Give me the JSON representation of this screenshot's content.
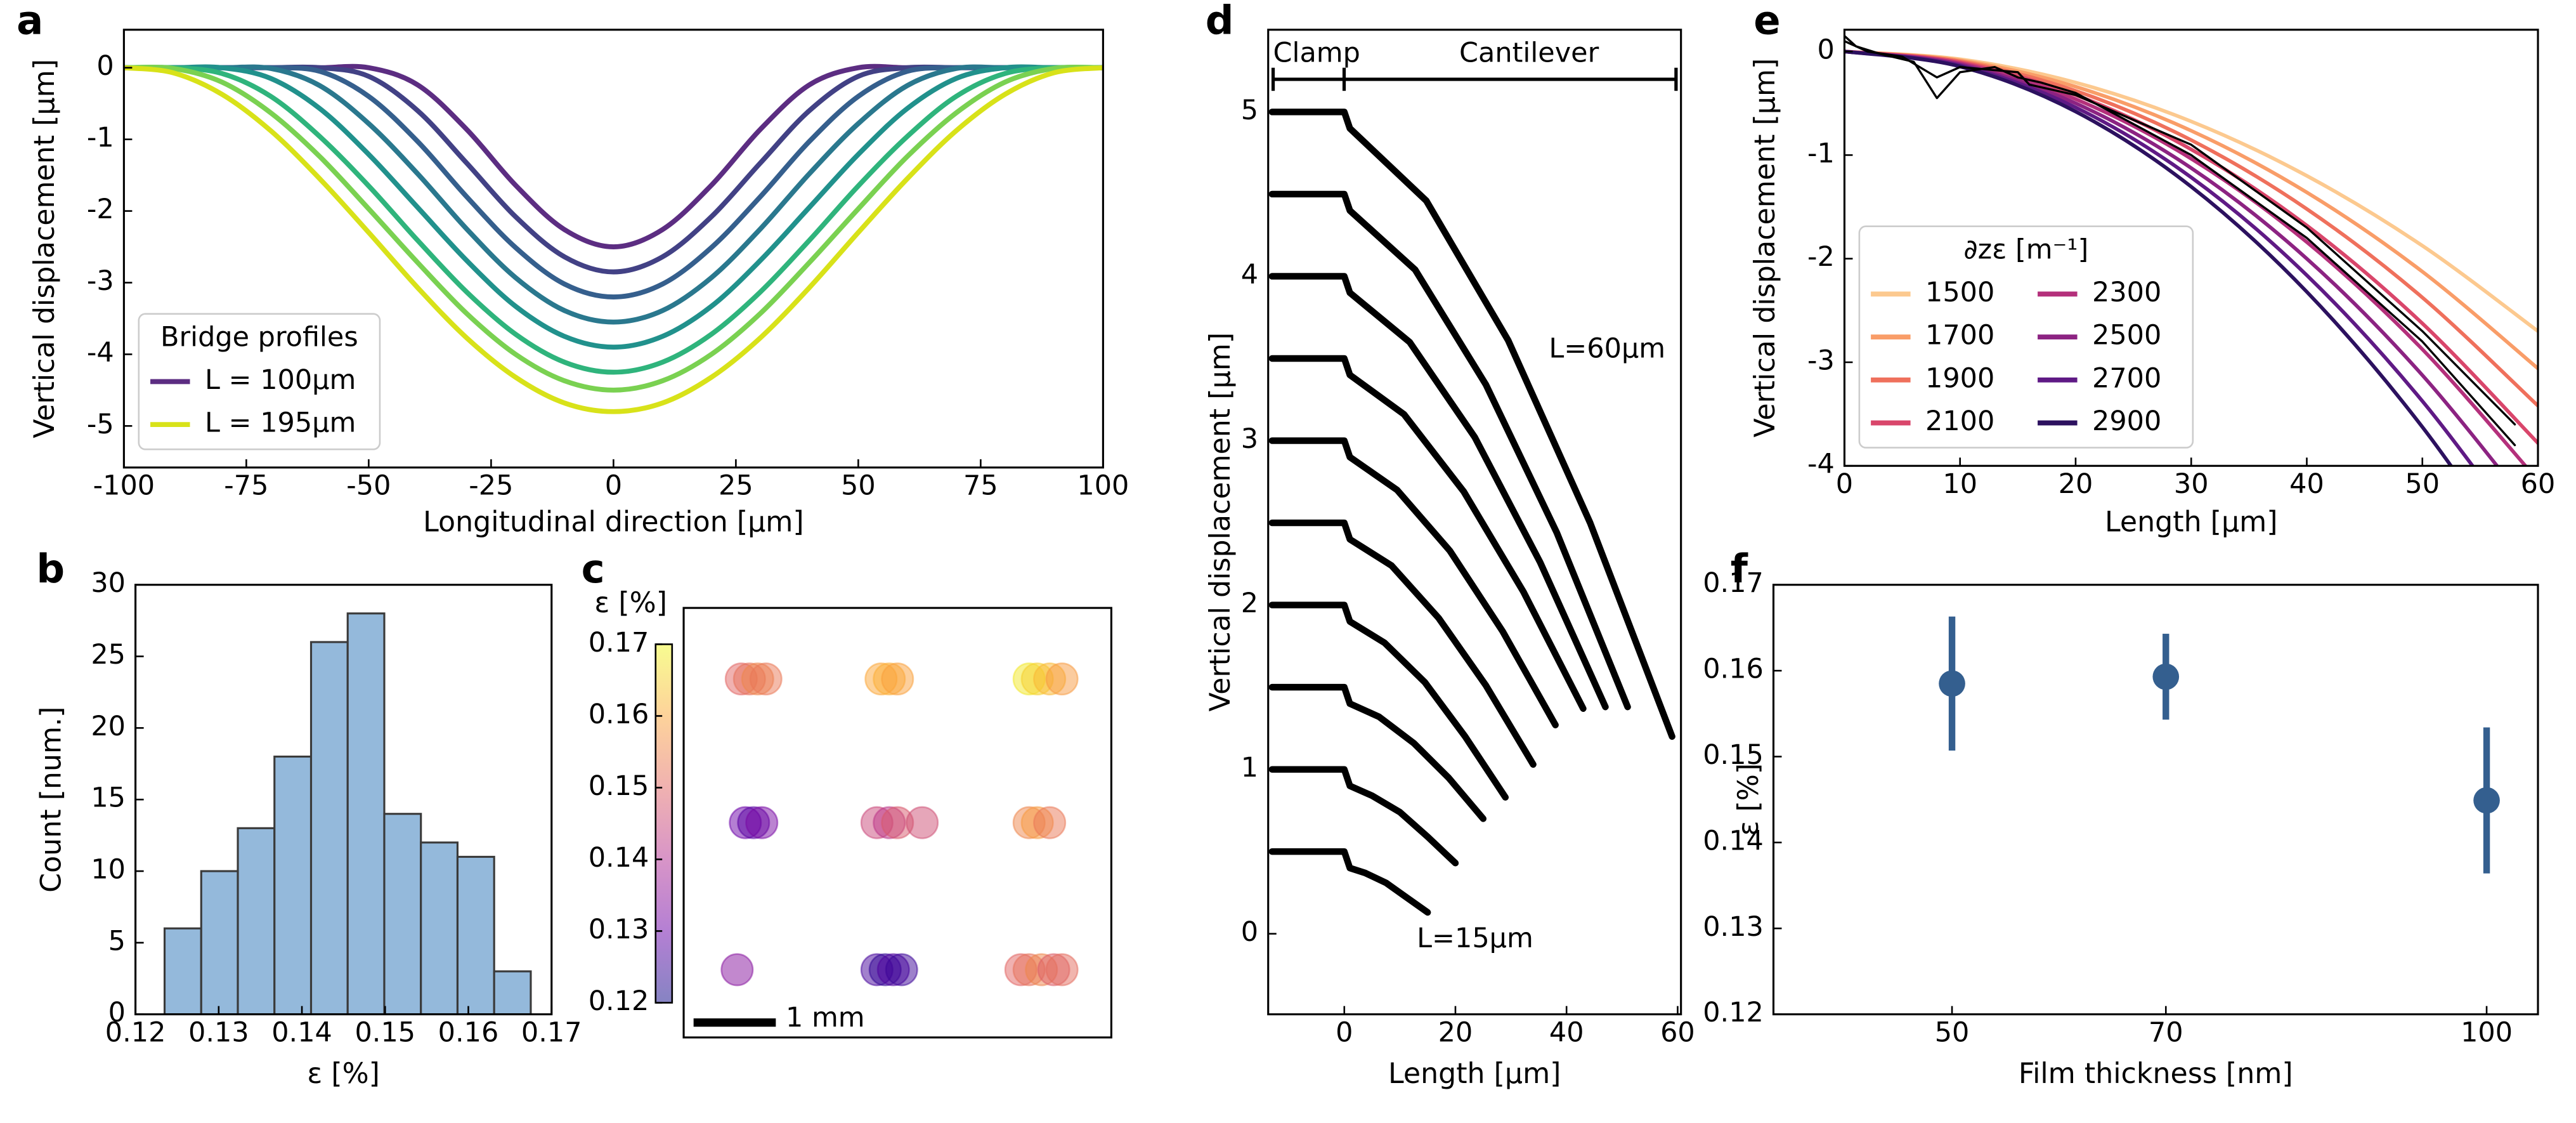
{
  "chart_data": [
    {
      "label": "a",
      "type": "line",
      "xlabel": "Longitudinal direction [µm]",
      "ylabel": "Vertical displacement [µm]",
      "x": [
        -100,
        -90,
        -80,
        -70,
        -60,
        -50,
        -40,
        -30,
        -20,
        -10,
        0,
        10,
        20,
        30,
        40,
        50,
        60,
        70,
        80,
        90,
        100
      ],
      "series": [
        {
          "name": "L = 100µm",
          "color": "#5c2d82",
          "values": [
            0,
            0,
            0,
            0,
            0,
            0,
            -0.24,
            -0.86,
            -1.64,
            -2.26,
            -2.5,
            -2.26,
            -1.64,
            -0.86,
            -0.24,
            0,
            0,
            0,
            0,
            0,
            0
          ]
        },
        {
          "color": "#424185",
          "values": [
            0,
            0,
            0,
            0,
            0,
            -0.12,
            -0.6,
            -1.33,
            -2.08,
            -2.64,
            -2.85,
            -2.64,
            -2.08,
            -1.33,
            -0.6,
            -0.12,
            0,
            0,
            0,
            0,
            0
          ]
        },
        {
          "color": "#355f8d",
          "values": [
            0,
            0,
            0,
            0,
            -0.05,
            -0.4,
            -1.03,
            -1.8,
            -2.51,
            -3.02,
            -3.2,
            -3.02,
            -2.51,
            -1.8,
            -1.03,
            -0.4,
            -0.05,
            0,
            0,
            0,
            0
          ]
        },
        {
          "color": "#2a788e",
          "values": [
            0,
            0,
            0,
            -0.01,
            -0.25,
            -0.78,
            -1.48,
            -2.25,
            -2.93,
            -3.39,
            -3.55,
            -3.39,
            -2.93,
            -2.25,
            -1.48,
            -0.78,
            -0.25,
            -0.01,
            0,
            0,
            0
          ]
        },
        {
          "color": "#21918c",
          "values": [
            0,
            0,
            0,
            -0.15,
            -0.57,
            -1.21,
            -1.95,
            -2.69,
            -3.33,
            -3.75,
            -3.9,
            -3.75,
            -3.33,
            -2.69,
            -1.95,
            -1.21,
            -0.57,
            -0.15,
            0,
            0,
            0
          ]
        },
        {
          "color": "#2fb47c",
          "values": [
            0,
            0,
            -0.08,
            -0.4,
            -0.96,
            -1.65,
            -2.41,
            -3.13,
            -3.72,
            -4.11,
            -4.25,
            -4.11,
            -3.72,
            -3.13,
            -2.41,
            -1.65,
            -0.96,
            -0.4,
            -0.08,
            0,
            0
          ]
        },
        {
          "color": "#7ad151",
          "values": [
            0,
            -0.01,
            -0.2,
            -0.63,
            -1.24,
            -1.97,
            -2.72,
            -3.43,
            -4,
            -4.37,
            -4.5,
            -4.37,
            -4,
            -3.43,
            -2.72,
            -1.97,
            -1.24,
            -0.63,
            -0.2,
            -0.01,
            0
          ]
        },
        {
          "name": "L = 195µm",
          "color": "#d8e219",
          "values": [
            0,
            -0.07,
            -0.37,
            -0.88,
            -1.55,
            -2.3,
            -3.07,
            -3.77,
            -4.32,
            -4.68,
            -4.8,
            -4.68,
            -4.32,
            -3.77,
            -3.07,
            -2.3,
            -1.55,
            -0.88,
            -0.37,
            -0.07,
            0
          ]
        }
      ],
      "xlim": [
        -100,
        100
      ],
      "xticks": [
        -100,
        -75,
        -50,
        -25,
        0,
        25,
        50,
        75,
        100
      ],
      "ylim": [
        -5.58,
        0.53
      ],
      "yticks": [
        0,
        -1,
        -2,
        -3,
        -4,
        -5
      ],
      "legend_title": "Bridge profiles",
      "legend_corner": "lower left",
      "legend_columns": 1
    },
    {
      "label": "b",
      "type": "histogram",
      "xlabel": "ε [%]",
      "ylabel": "Count [num.]",
      "bins": [
        0.1235,
        0.1279,
        0.1323,
        0.1367,
        0.1411,
        0.1455,
        0.1499,
        0.1543,
        0.1587,
        0.1631,
        0.1675
      ],
      "values": [
        6,
        10,
        13,
        18,
        26,
        28,
        14,
        12,
        11,
        3
      ],
      "color": "#94b9db",
      "edgecolor": "#3a3a3a",
      "xlim": [
        0.12,
        0.17
      ],
      "xticks": [
        0.12,
        0.13,
        0.14,
        0.15,
        0.16,
        0.17
      ],
      "ylim": [
        0,
        30
      ],
      "yticks": [
        0,
        5,
        10,
        15,
        20,
        25,
        30
      ]
    },
    {
      "label": "c",
      "type": "scatter",
      "colorbar_label": "ε [%]",
      "x": [
        0.7,
        0.8,
        0.9,
        1.0,
        2.4,
        2.5,
        2.6,
        4.2,
        4.3,
        4.45,
        4.6,
        0.75,
        0.85,
        0.95,
        2.35,
        2.5,
        2.6,
        2.9,
        4.2,
        4.3,
        4.45,
        0.65,
        2.35,
        2.45,
        2.55,
        2.65,
        4.1,
        4.2,
        4.35,
        4.5,
        4.6
      ],
      "y": [
        4.34,
        4.34,
        4.34,
        4.34,
        4.34,
        4.34,
        4.34,
        4.34,
        4.34,
        4.34,
        4.34,
        2.6,
        2.6,
        2.6,
        2.6,
        2.6,
        2.6,
        2.6,
        2.6,
        2.6,
        2.6,
        0.82,
        0.82,
        0.82,
        0.82,
        0.82,
        0.82,
        0.82,
        0.82,
        0.82,
        0.82
      ],
      "values": [
        0.15,
        0.152,
        0.155,
        0.153,
        0.16,
        0.161,
        0.159,
        0.168,
        0.165,
        0.162,
        0.158,
        0.13,
        0.128,
        0.132,
        0.145,
        0.142,
        0.148,
        0.146,
        0.155,
        0.158,
        0.153,
        0.134,
        0.126,
        0.124,
        0.127,
        0.125,
        0.15,
        0.152,
        0.155,
        0.149,
        0.151
      ],
      "xlim": [
        0,
        5.2
      ],
      "ylim": [
        0,
        5.2
      ],
      "alpha": 0.5,
      "colormap": [
        "#0d0887",
        "#6a00a8",
        "#b12a90",
        "#e16462",
        "#fca636",
        "#f0f921"
      ],
      "clim": [
        0.12,
        0.17
      ],
      "cticks": [
        0.12,
        0.13,
        0.14,
        0.15,
        0.16,
        0.17
      ],
      "scale_bar": {
        "label": "1 mm",
        "length": 1
      }
    },
    {
      "label": "d",
      "type": "line",
      "xlabel": "Length [µm]",
      "ylabel": "Vertical displacement [µm]",
      "annotations": [
        "Clamp",
        "Cantilever",
        "L=60µm",
        "L=15µm"
      ],
      "series": [
        {
          "color": "#000000",
          "x": [
            -13,
            -1,
            0,
            1,
            3.75,
            7.5,
            11.25,
            15
          ],
          "values": [
            0.5,
            0.5,
            0.5,
            0.4,
            0.37,
            0.31,
            0.22,
            0.13
          ]
        },
        {
          "color": "#000000",
          "x": [
            -13,
            -1,
            0,
            1,
            5,
            10,
            15,
            20
          ],
          "values": [
            1,
            1,
            1,
            0.9,
            0.84,
            0.74,
            0.59,
            0.43
          ]
        },
        {
          "color": "#000000",
          "x": [
            -13,
            -1,
            0,
            1,
            6.25,
            12.5,
            18.75,
            25
          ],
          "values": [
            1.5,
            1.5,
            1.5,
            1.4,
            1.32,
            1.16,
            0.95,
            0.7
          ]
        },
        {
          "color": "#000000",
          "x": [
            -13,
            -1,
            0,
            1,
            7.25,
            14.5,
            21.75,
            29
          ],
          "values": [
            2,
            2,
            2,
            1.9,
            1.77,
            1.53,
            1.2,
            0.83
          ]
        },
        {
          "color": "#000000",
          "x": [
            -13,
            -1,
            0,
            1,
            8.5,
            17,
            25.5,
            34
          ],
          "values": [
            2.5,
            2.5,
            2.5,
            2.4,
            2.24,
            1.92,
            1.51,
            1.03
          ]
        },
        {
          "color": "#000000",
          "x": [
            -13,
            -1,
            0,
            1,
            9.5,
            19,
            28.5,
            38
          ],
          "values": [
            3,
            3,
            3,
            2.9,
            2.7,
            2.33,
            1.84,
            1.27
          ]
        },
        {
          "color": "#000000",
          "x": [
            -13,
            -1,
            0,
            1,
            10.75,
            21.5,
            32.25,
            43
          ],
          "values": [
            3.5,
            3.5,
            3.5,
            3.4,
            3.16,
            2.69,
            2.08,
            1.37
          ]
        },
        {
          "color": "#000000",
          "x": [
            -13,
            -1,
            0,
            1,
            11.75,
            23.5,
            35.25,
            47
          ],
          "values": [
            4,
            4,
            4,
            3.9,
            3.6,
            3.02,
            2.26,
            1.38
          ]
        },
        {
          "color": "#000000",
          "x": [
            -13,
            -1,
            0,
            1,
            12.75,
            25.5,
            38.25,
            51
          ],
          "values": [
            4.5,
            4.5,
            4.5,
            4.4,
            4.04,
            3.34,
            2.44,
            1.38
          ]
        },
        {
          "color": "#000000",
          "x": [
            -13,
            -1,
            0,
            1,
            14.75,
            29.5,
            44.25,
            59
          ],
          "values": [
            5,
            5,
            5,
            4.9,
            4.46,
            3.61,
            2.5,
            1.2
          ]
        }
      ],
      "xlim": [
        -13.7,
        60.6
      ],
      "xticks": [
        0,
        20,
        40,
        60
      ],
      "ylim": [
        -0.49,
        5.5
      ],
      "yticks": [
        0,
        1,
        2,
        3,
        4,
        5
      ]
    },
    {
      "label": "e",
      "type": "line",
      "xlabel": "Length [µm]",
      "ylabel": "Vertical displacement [µm]",
      "x": [
        0,
        10,
        20,
        30,
        40,
        50,
        60
      ],
      "series": [
        {
          "name": "1500",
          "color": "#fcc98f",
          "values": [
            0,
            -0.075,
            -0.3,
            -0.675,
            -1.2,
            -1.875,
            -2.7
          ]
        },
        {
          "name": "1700",
          "color": "#f99d68",
          "values": [
            0,
            -0.085,
            -0.34,
            -0.765,
            -1.36,
            -2.125,
            -3.06
          ]
        },
        {
          "name": "1900",
          "color": "#ef705c",
          "values": [
            0,
            -0.095,
            -0.38,
            -0.855,
            -1.52,
            -2.375,
            -3.42
          ]
        },
        {
          "name": "2100",
          "color": "#d9466b",
          "values": [
            0,
            -0.105,
            -0.42,
            -0.945,
            -1.68,
            -2.625,
            -3.78
          ]
        },
        {
          "name": "2300",
          "color": "#b4307b",
          "values": [
            0,
            -0.115,
            -0.46,
            -1.035,
            -1.84,
            -2.875,
            -4.14
          ]
        },
        {
          "name": "2500",
          "color": "#8c2382",
          "values": [
            0,
            -0.125,
            -0.5,
            -1.125,
            -2.0,
            -3.125,
            -4.5
          ]
        },
        {
          "name": "2700",
          "color": "#5f1a85",
          "values": [
            0,
            -0.135,
            -0.54,
            -1.215,
            -2.16,
            -3.375,
            -4.86
          ]
        },
        {
          "name": "2900",
          "color": "#2c115f",
          "values": [
            0,
            -0.145,
            -0.58,
            -1.305,
            -2.32,
            -3.625,
            -5.22
          ]
        },
        {
          "color": "#000000",
          "x": [
            0,
            2,
            5,
            8,
            10,
            15,
            16,
            20,
            30,
            40,
            50,
            58
          ],
          "values": [
            0.1,
            0,
            -0.05,
            -0.25,
            -0.15,
            -0.2,
            -0.32,
            -0.42,
            -0.9,
            -1.7,
            -2.7,
            -3.6
          ]
        },
        {
          "color": "#000000",
          "x": [
            0,
            1,
            3,
            6,
            8,
            10,
            13,
            15,
            17,
            20,
            30,
            40,
            50,
            58
          ],
          "values": [
            0.15,
            0.05,
            -0.02,
            -0.1,
            -0.45,
            -0.2,
            -0.15,
            -0.25,
            -0.3,
            -0.4,
            -1.0,
            -1.8,
            -2.8,
            -3.8
          ]
        }
      ],
      "xlim": [
        0,
        60
      ],
      "xticks": [
        0,
        10,
        20,
        30,
        40,
        50,
        60
      ],
      "ylim": [
        -4,
        0.21
      ],
      "yticks": [
        0,
        -1,
        -2,
        -3,
        -4
      ],
      "legend_title": "∂zε [m⁻¹]",
      "legend_corner": "lower left",
      "legend_columns": 2
    },
    {
      "label": "f",
      "type": "errorbar",
      "xlabel": "Film thickness [nm]",
      "ylabel": "ε [%]",
      "x": [
        50,
        70,
        100
      ],
      "values": [
        0.1585,
        0.1593,
        0.1449
      ],
      "errors": [
        0.0078,
        0.005,
        0.0085
      ],
      "color": "#345f8f",
      "xlim": [
        33.3,
        104.8
      ],
      "xticks": [
        50,
        70,
        100
      ],
      "ylim": [
        0.12,
        0.17
      ],
      "yticks": [
        0.12,
        0.13,
        0.14,
        0.15,
        0.16,
        0.17
      ]
    }
  ]
}
